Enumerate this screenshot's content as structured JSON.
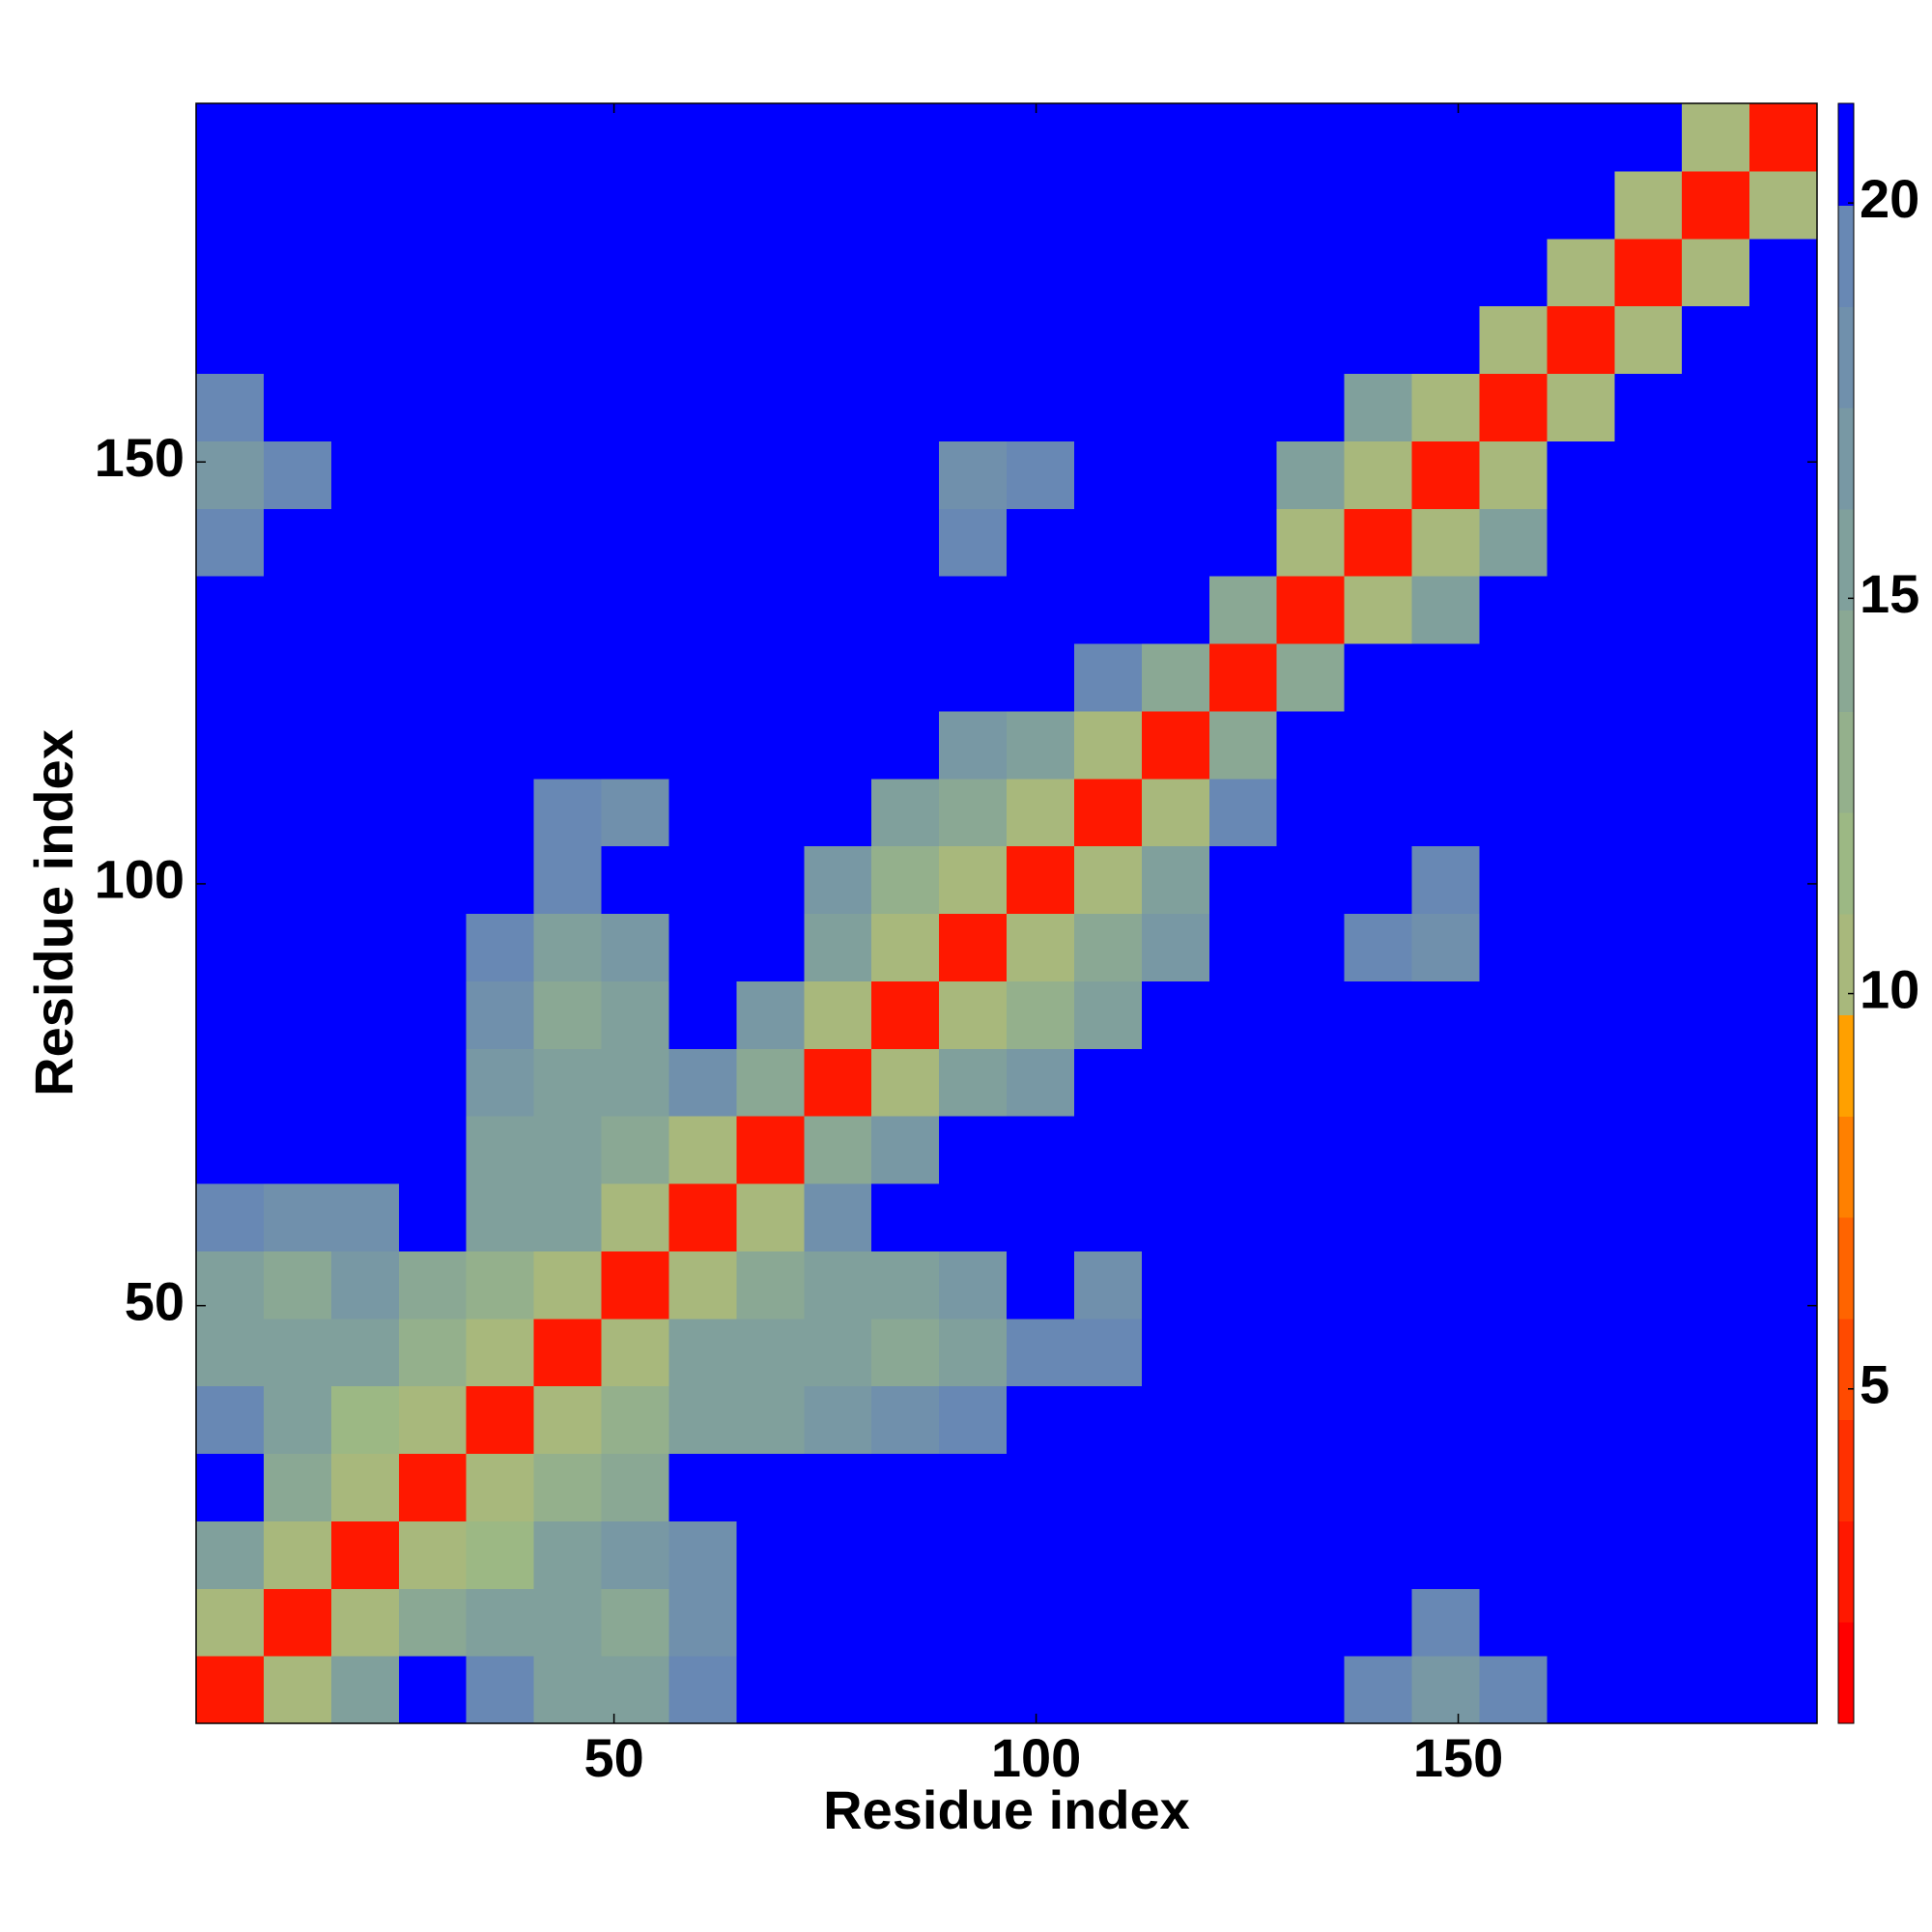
{
  "chart_data": {
    "type": "heatmap",
    "xlabel": "Residue index",
    "ylabel": "Residue index",
    "xlim": [
      0.5,
      192.5
    ],
    "ylim": [
      0.5,
      192.5
    ],
    "xticks": [
      50,
      100,
      150
    ],
    "yticks": [
      50,
      100,
      150
    ],
    "xbins": [
      0.5,
      8.5,
      16.5,
      24.5,
      32.5,
      40.5,
      48.5,
      56.5,
      64.5,
      72.5,
      80.5,
      88.5,
      96.5,
      104.5,
      112.5,
      120.5,
      128.5,
      136.5,
      144.5,
      152.5,
      160.5,
      168.5,
      176.5,
      184.5,
      192.5
    ],
    "ybins": [
      0.5,
      8.5,
      16.5,
      24.5,
      32.5,
      40.5,
      48.5,
      56.5,
      64.5,
      72.5,
      80.5,
      88.5,
      96.5,
      104.5,
      112.5,
      120.5,
      128.5,
      136.5,
      144.5,
      152.5,
      160.5,
      168.5,
      176.5,
      184.5,
      192.5
    ],
    "values": [
      [
        3,
        10,
        16,
        21,
        19,
        16,
        15,
        19,
        21,
        21,
        21,
        21,
        21,
        21,
        21,
        21,
        21,
        19,
        17,
        19,
        21,
        21,
        21,
        21
      ],
      [
        10,
        3,
        10,
        14,
        16,
        15,
        14,
        18,
        21,
        21,
        21,
        21,
        21,
        21,
        21,
        21,
        21,
        21,
        19,
        21,
        21,
        21,
        21,
        21
      ],
      [
        16,
        10,
        3,
        10,
        12,
        15,
        17,
        18,
        21,
        21,
        21,
        21,
        21,
        21,
        21,
        21,
        21,
        21,
        21,
        21,
        21,
        21,
        21,
        21
      ],
      [
        21,
        14,
        10,
        3,
        10,
        13,
        14,
        21,
        21,
        21,
        21,
        21,
        21,
        21,
        21,
        21,
        21,
        21,
        21,
        21,
        21,
        21,
        21,
        21
      ],
      [
        19,
        16,
        12,
        10,
        3,
        10,
        13,
        15,
        16,
        17,
        18,
        19,
        21,
        20,
        21,
        21,
        21,
        21,
        21,
        21,
        21,
        21,
        21,
        21
      ],
      [
        16,
        15,
        15,
        13,
        10,
        3,
        10,
        16,
        16,
        15,
        14,
        16,
        19,
        19,
        21,
        21,
        21,
        21,
        21,
        21,
        21,
        21,
        21,
        21
      ],
      [
        15,
        14,
        17,
        14,
        13,
        10,
        3,
        10,
        14,
        15,
        16,
        17,
        20,
        18,
        21,
        21,
        21,
        21,
        21,
        21,
        21,
        21,
        21,
        21
      ],
      [
        19,
        18,
        18,
        21,
        15,
        16,
        10,
        3,
        10,
        18,
        21,
        21,
        21,
        21,
        21,
        21,
        21,
        21,
        21,
        21,
        21,
        21,
        21,
        21
      ],
      [
        21,
        21,
        21,
        21,
        16,
        16,
        14,
        10,
        3,
        14,
        17,
        21,
        21,
        21,
        21,
        21,
        20,
        21,
        21,
        21,
        21,
        21,
        21,
        21
      ],
      [
        21,
        21,
        21,
        21,
        17,
        15,
        15,
        18,
        14,
        3,
        10,
        15,
        17,
        21,
        21,
        21,
        21,
        20,
        21,
        21,
        21,
        21,
        21,
        21
      ],
      [
        21,
        21,
        21,
        21,
        18,
        14,
        16,
        21,
        17,
        10,
        3,
        10,
        13,
        16,
        21,
        21,
        21,
        21,
        21,
        21,
        21,
        21,
        21,
        21
      ],
      [
        21,
        21,
        21,
        21,
        19,
        16,
        17,
        21,
        21,
        15,
        10,
        3,
        10,
        14,
        17,
        21,
        21,
        19,
        18,
        21,
        21,
        21,
        21,
        21
      ],
      [
        21,
        21,
        21,
        21,
        21,
        19,
        20,
        21,
        21,
        17,
        13,
        10,
        3,
        10,
        16,
        21,
        21,
        21,
        19,
        21,
        21,
        21,
        21,
        21
      ],
      [
        21,
        21,
        21,
        21,
        20,
        19,
        18,
        21,
        21,
        21,
        16,
        14,
        10,
        3,
        10,
        19,
        21,
        21,
        21,
        21,
        21,
        21,
        21,
        21
      ],
      [
        21,
        21,
        21,
        21,
        21,
        21,
        21,
        21,
        21,
        21,
        21,
        17,
        16,
        10,
        3,
        14,
        21,
        21,
        21,
        21,
        21,
        21,
        21,
        21
      ],
      [
        21,
        21,
        21,
        21,
        21,
        21,
        21,
        21,
        21,
        21,
        21,
        21,
        21,
        19,
        14,
        3,
        14,
        21,
        21,
        21,
        21,
        21,
        21,
        21
      ],
      [
        21,
        21,
        21,
        21,
        21,
        21,
        21,
        21,
        20,
        21,
        21,
        21,
        21,
        21,
        21,
        14,
        3,
        10,
        15,
        21,
        21,
        21,
        21,
        21
      ],
      [
        19,
        21,
        21,
        21,
        21,
        21,
        21,
        21,
        21,
        20,
        21,
        19,
        21,
        21,
        21,
        21,
        10,
        3,
        10,
        16,
        21,
        21,
        21,
        21
      ],
      [
        17,
        19,
        21,
        21,
        21,
        21,
        21,
        21,
        21,
        21,
        21,
        18,
        19,
        21,
        21,
        21,
        15,
        10,
        3,
        10,
        21,
        21,
        21,
        21
      ],
      [
        19,
        21,
        21,
        21,
        21,
        21,
        21,
        21,
        21,
        21,
        21,
        21,
        21,
        21,
        21,
        21,
        21,
        16,
        10,
        3,
        10,
        21,
        21,
        21
      ],
      [
        21,
        21,
        21,
        21,
        21,
        21,
        21,
        21,
        21,
        21,
        21,
        21,
        21,
        21,
        21,
        21,
        21,
        21,
        21,
        10,
        3,
        10,
        21,
        21
      ],
      [
        21,
        21,
        21,
        21,
        21,
        21,
        21,
        21,
        21,
        21,
        21,
        21,
        21,
        21,
        21,
        21,
        21,
        21,
        21,
        21,
        10,
        3,
        10,
        21
      ],
      [
        21,
        21,
        21,
        21,
        21,
        21,
        21,
        21,
        21,
        21,
        21,
        21,
        21,
        21,
        21,
        21,
        21,
        21,
        21,
        21,
        21,
        10,
        3,
        10
      ],
      [
        21,
        21,
        21,
        21,
        21,
        21,
        21,
        21,
        21,
        21,
        21,
        21,
        21,
        21,
        21,
        21,
        21,
        21,
        21,
        21,
        21,
        21,
        10,
        3
      ]
    ],
    "colorbar": {
      "ticks": [
        5,
        10,
        15,
        20
      ],
      "levels": [
        0.77,
        2.05,
        3.33,
        4.61,
        5.89,
        7.17,
        8.45,
        9.73,
        11.01,
        12.29,
        13.57,
        14.85,
        16.13,
        17.41,
        18.69,
        19.97,
        21.26
      ],
      "colors": [
        "#ff0000",
        "#ff1800",
        "#ff3000",
        "#ff4a00",
        "#ff6400",
        "#ff8000",
        "#ffa000",
        "#a8b87c",
        "#9cb884",
        "#94b08c",
        "#8aa894",
        "#80a09c",
        "#7898a4",
        "#7090ac",
        "#6888b4",
        "#0000ff"
      ]
    }
  }
}
